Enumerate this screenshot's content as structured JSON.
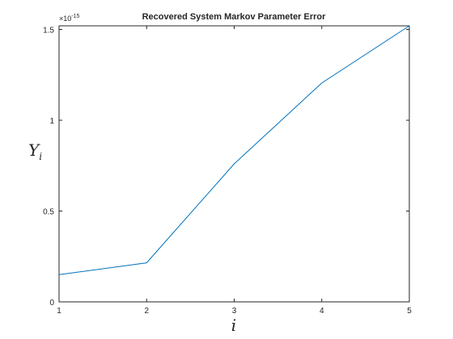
{
  "chart_data": {
    "type": "line",
    "title": "Recovered System Markov Parameter Error",
    "xlabel": "i",
    "ylabel": {
      "base": "Y",
      "sub": "i"
    },
    "x": [
      1,
      2,
      3,
      4,
      5
    ],
    "series": [
      {
        "values": [
          0.15,
          0.215,
          0.76,
          1.205,
          1.52
        ],
        "color": "#0072bd"
      }
    ],
    "xlim": [
      1,
      5
    ],
    "ylim": [
      0,
      1.52
    ],
    "xticks": [
      "1",
      "2",
      "3",
      "4",
      "5"
    ],
    "yticks": [
      {
        "value": 0,
        "label": "0"
      },
      {
        "value": 0.5,
        "label": "0.5"
      },
      {
        "value": 1,
        "label": "1"
      },
      {
        "value": 1.5,
        "label": "1.5"
      }
    ],
    "y_multiplier": {
      "base": "×10",
      "exp": "-15"
    },
    "grid": false,
    "legend": "none"
  }
}
